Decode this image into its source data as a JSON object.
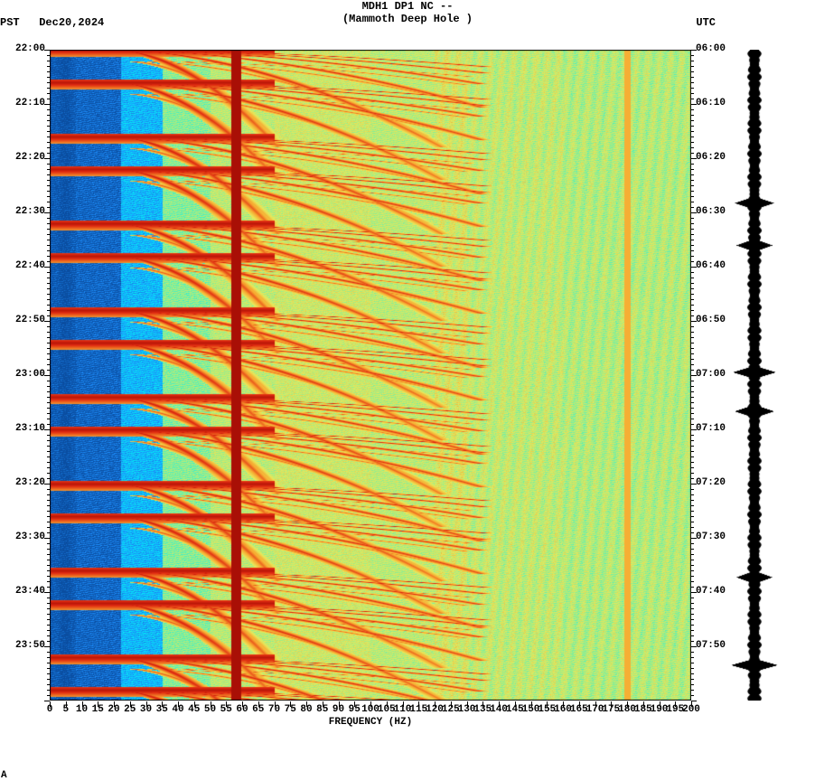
{
  "header": {
    "line1": "MDH1 DP1 NC --",
    "line2": "(Mammoth Deep Hole )",
    "pst_label": "PST",
    "date": "Dec20,2024",
    "utc_label": "UTC"
  },
  "chart": {
    "type": "spectrogram",
    "xlabel": "FREQUENCY (HZ)",
    "x_ticks": [
      0,
      5,
      10,
      15,
      20,
      25,
      30,
      35,
      40,
      45,
      50,
      55,
      60,
      65,
      70,
      75,
      80,
      85,
      90,
      95,
      100,
      105,
      110,
      115,
      120,
      125,
      130,
      135,
      140,
      145,
      150,
      155,
      160,
      165,
      170,
      175,
      180,
      185,
      190,
      195,
      200
    ],
    "x_range": [
      0,
      200
    ],
    "left_time_labels": [
      "22:00",
      "22:10",
      "22:20",
      "22:30",
      "22:40",
      "22:50",
      "23:00",
      "23:10",
      "23:20",
      "23:30",
      "23:40",
      "23:50"
    ],
    "right_time_labels": [
      "06:00",
      "06:10",
      "06:20",
      "06:30",
      "06:40",
      "06:50",
      "07:00",
      "07:10",
      "07:20",
      "07:30",
      "07:40",
      "07:50"
    ],
    "minor_per_major": 10,
    "colormap": [
      "#0a4da0",
      "#1e90ff",
      "#00f0f5",
      "#90ee90",
      "#e8e85a",
      "#f8a830",
      "#e02a10",
      "#8b0000"
    ],
    "bg": "#ffffff",
    "freq_bands": {
      "blue_end": 22,
      "cyan_peak": 30,
      "transition": 50,
      "yellow_start": 55,
      "green_mid": 140
    },
    "vertical_line": 58,
    "pulse_period_min": 8.2,
    "pulse_events": [
      0,
      3,
      8,
      11,
      16,
      19,
      24,
      27,
      32,
      35,
      40,
      43,
      48,
      51,
      56,
      59
    ],
    "secondary_events": [
      1,
      4,
      9,
      12,
      17,
      20,
      25,
      28,
      33,
      36,
      41,
      44,
      49,
      52,
      57,
      60
    ]
  },
  "waveform": {
    "type": "amplitude-trace",
    "color": "#000000",
    "base_width": 10,
    "spikes": [
      {
        "t": 0.235,
        "amp": 22
      },
      {
        "t": 0.3,
        "amp": 20
      },
      {
        "t": 0.495,
        "amp": 24
      },
      {
        "t": 0.555,
        "amp": 22
      },
      {
        "t": 0.81,
        "amp": 20
      },
      {
        "t": 0.945,
        "amp": 26
      }
    ]
  },
  "footer": {
    "corner": "A"
  }
}
